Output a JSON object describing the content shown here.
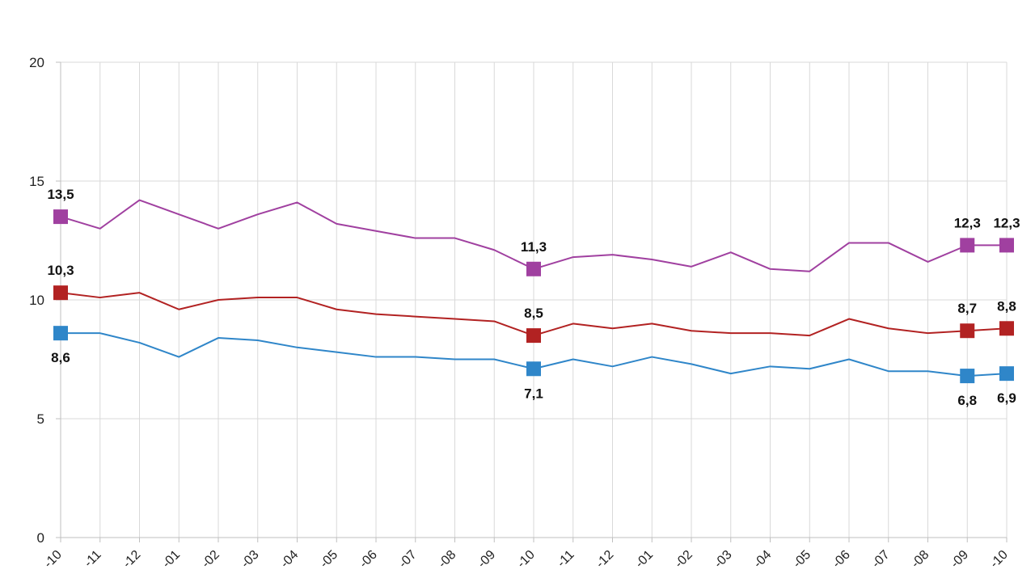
{
  "chart_data": {
    "type": "line",
    "title": "",
    "xlabel": "",
    "ylabel": "",
    "ylim": [
      0,
      20
    ],
    "yticks": [
      "0",
      "5",
      "10",
      "15",
      "20"
    ],
    "grid": true,
    "categories": [
      "-10",
      "-11",
      "-12",
      "-01",
      "-02",
      "-03",
      "-04",
      "-05",
      "-06",
      "-07",
      "-08",
      "-09",
      "-10",
      "-11",
      "-12",
      "-01",
      "-02",
      "-03",
      "-04",
      "-05",
      "-06",
      "-07",
      "-08",
      "-09",
      "-10"
    ],
    "series": [
      {
        "color": "#a040a0",
        "values": [
          13.5,
          13.0,
          14.2,
          13.6,
          13.0,
          13.6,
          14.1,
          13.2,
          12.9,
          12.6,
          12.6,
          12.1,
          11.3,
          11.8,
          11.9,
          11.7,
          11.4,
          12.0,
          11.3,
          11.2,
          12.4,
          12.4,
          11.6,
          12.3,
          12.3
        ],
        "markers": [
          0,
          12,
          23,
          24
        ],
        "labels": [
          {
            "index": 0,
            "text": "13,5",
            "pos": "above"
          },
          {
            "index": 12,
            "text": "11,3",
            "pos": "above"
          },
          {
            "index": 23,
            "text": "12,3",
            "pos": "above"
          },
          {
            "index": 24,
            "text": "12,3",
            "pos": "above"
          }
        ]
      },
      {
        "color": "#b22222",
        "values": [
          10.3,
          10.1,
          10.3,
          9.6,
          10.0,
          10.1,
          10.1,
          9.6,
          9.4,
          9.3,
          9.2,
          9.1,
          8.5,
          9.0,
          8.8,
          9.0,
          8.7,
          8.6,
          8.6,
          8.5,
          9.2,
          8.8,
          8.6,
          8.7,
          8.8
        ],
        "markers": [
          0,
          12,
          23,
          24
        ],
        "labels": [
          {
            "index": 0,
            "text": "10,3",
            "pos": "above"
          },
          {
            "index": 12,
            "text": "8,5",
            "pos": "above"
          },
          {
            "index": 23,
            "text": "8,7",
            "pos": "above"
          },
          {
            "index": 24,
            "text": "8,8",
            "pos": "above"
          }
        ]
      },
      {
        "color": "#2f86c9",
        "values": [
          8.6,
          8.6,
          8.2,
          7.6,
          8.4,
          8.3,
          8.0,
          7.8,
          7.6,
          7.6,
          7.5,
          7.5,
          7.1,
          7.5,
          7.2,
          7.6,
          7.3,
          6.9,
          7.2,
          7.1,
          7.5,
          7.0,
          7.0,
          6.8,
          6.9
        ],
        "markers": [
          0,
          12,
          23,
          24
        ],
        "labels": [
          {
            "index": 0,
            "text": "8,6",
            "pos": "below"
          },
          {
            "index": 12,
            "text": "7,1",
            "pos": "below"
          },
          {
            "index": 23,
            "text": "6,8",
            "pos": "below"
          },
          {
            "index": 24,
            "text": "6,9",
            "pos": "below"
          }
        ]
      }
    ]
  }
}
